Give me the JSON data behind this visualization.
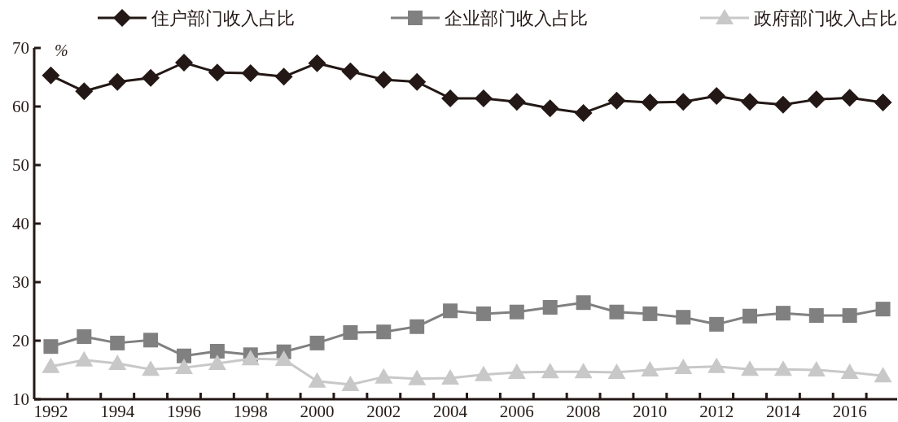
{
  "chart_data": {
    "type": "line",
    "ylabel": "%",
    "categories": [
      "1992",
      null,
      "1994",
      null,
      "1996",
      null,
      "1998",
      null,
      "2000",
      null,
      "2002",
      null,
      "2004",
      null,
      "2006",
      null,
      "2008",
      null,
      "2010",
      null,
      "2012",
      null,
      "2014",
      null,
      "2016",
      null
    ],
    "ylim": [
      10,
      70
    ],
    "yticks": [
      10,
      20,
      30,
      40,
      50,
      60,
      70
    ],
    "grid": false,
    "legend": "top",
    "series": [
      {
        "name": "住户部门收入占比",
        "color": "#231815",
        "marker": "diamond",
        "values": [
          65.3,
          62.6,
          64.2,
          64.9,
          67.5,
          65.8,
          65.7,
          65.1,
          67.4,
          66.0,
          64.6,
          64.2,
          61.4,
          61.4,
          60.8,
          59.7,
          58.9,
          61.0,
          60.7,
          60.8,
          61.8,
          60.8,
          60.3,
          61.2,
          61.5,
          60.7
        ]
      },
      {
        "name": "企业部门收入占比",
        "color": "#808080",
        "marker": "square",
        "values": [
          19.0,
          20.7,
          19.6,
          20.1,
          17.4,
          18.2,
          17.6,
          18.1,
          19.6,
          21.4,
          21.5,
          22.4,
          25.1,
          24.6,
          24.9,
          25.7,
          26.5,
          24.9,
          24.6,
          24.0,
          22.8,
          24.2,
          24.7,
          24.3,
          24.3,
          25.4
        ]
      },
      {
        "name": "政府部门收入占比",
        "color": "#c8c8c8",
        "marker": "triangle",
        "values": [
          15.6,
          16.7,
          16.1,
          15.1,
          15.4,
          16.1,
          16.9,
          16.8,
          13.1,
          12.5,
          13.8,
          13.5,
          13.6,
          14.2,
          14.6,
          14.7,
          14.7,
          14.6,
          15.0,
          15.4,
          15.6,
          15.1,
          15.1,
          15.0,
          14.6,
          14.0
        ]
      }
    ]
  }
}
